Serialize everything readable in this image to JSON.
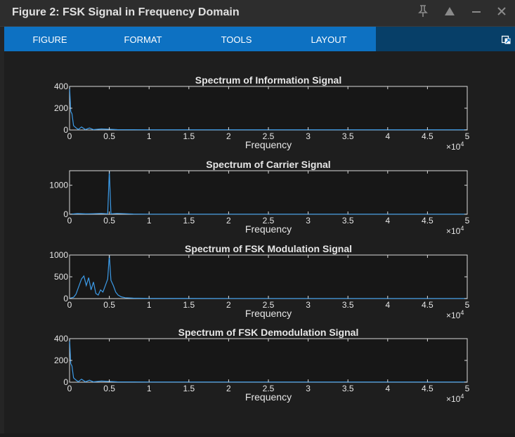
{
  "window": {
    "title": "Figure 2: FSK Signal in Frequency Domain"
  },
  "titlebar_icons": [
    "pin-icon",
    "collapse-icon",
    "minimize-icon",
    "close-icon"
  ],
  "toolstrip": {
    "tabs": [
      {
        "label": "FIGURE"
      },
      {
        "label": "FORMAT"
      },
      {
        "label": "TOOLS"
      },
      {
        "label": "LAYOUT"
      }
    ],
    "undock_icon": "undock-icon",
    "accent": "#0d71c2"
  },
  "colors": {
    "axes_bg": "#171717",
    "line": "#3c9be8",
    "text": "#e6e6e6"
  },
  "chart_data": [
    {
      "type": "line",
      "title": "Spectrum of Information Signal",
      "xlabel": "Frequency",
      "x_exponent": "×10^4",
      "xlim": [
        0,
        50000
      ],
      "ylim": [
        0,
        400
      ],
      "xticks": [
        "0",
        "0.5",
        "1",
        "1.5",
        "2",
        "2.5",
        "3",
        "3.5",
        "4",
        "4.5",
        "5"
      ],
      "yticks": [
        "0",
        "200",
        "400"
      ],
      "x": [
        0,
        150,
        300,
        500,
        800,
        1100,
        1500,
        2000,
        2500,
        3000,
        4000,
        6000,
        10000,
        20000,
        30000,
        40000,
        50000
      ],
      "y": [
        400,
        170,
        150,
        40,
        20,
        5,
        28,
        4,
        18,
        3,
        10,
        3,
        2,
        2,
        2,
        2,
        2
      ]
    },
    {
      "type": "line",
      "title": "Spectrum of Carrier Signal",
      "xlabel": "Frequency",
      "x_exponent": "×10^4",
      "xlim": [
        0,
        50000
      ],
      "ylim": [
        0,
        1500
      ],
      "xticks": [
        "0",
        "0.5",
        "1",
        "1.5",
        "2",
        "2.5",
        "3",
        "3.5",
        "4",
        "4.5",
        "5"
      ],
      "yticks": [
        "0",
        "1000"
      ],
      "x": [
        0,
        1000,
        2000,
        3000,
        4000,
        4800,
        5000,
        5200,
        6000,
        7000,
        8000,
        10000,
        20000,
        30000,
        40000,
        50000
      ],
      "y": [
        5,
        25,
        15,
        20,
        30,
        15,
        1500,
        15,
        30,
        20,
        10,
        5,
        5,
        5,
        5,
        5
      ]
    },
    {
      "type": "line",
      "title": "Spectrum of FSK Modulation Signal",
      "xlabel": "Frequency",
      "x_exponent": "×10^4",
      "xlim": [
        0,
        50000
      ],
      "ylim": [
        0,
        1000
      ],
      "xticks": [
        "0",
        "0.5",
        "1",
        "1.5",
        "2",
        "2.5",
        "3",
        "3.5",
        "4",
        "4.5",
        "5"
      ],
      "yticks": [
        "0",
        "500",
        "1000"
      ],
      "x": [
        0,
        500,
        800,
        1200,
        1500,
        1800,
        2100,
        2400,
        2700,
        3000,
        3300,
        3600,
        3900,
        4200,
        4500,
        4800,
        5000,
        5200,
        5500,
        5800,
        6100,
        6500,
        7000,
        8000,
        10000,
        20000,
        30000,
        40000,
        50000
      ],
      "y": [
        5,
        30,
        100,
        300,
        450,
        520,
        300,
        480,
        200,
        380,
        120,
        80,
        200,
        150,
        300,
        450,
        1000,
        420,
        300,
        150,
        80,
        40,
        20,
        10,
        5,
        3,
        3,
        3,
        3
      ]
    },
    {
      "type": "line",
      "title": "Spectrum of FSK Demodulation Signal",
      "xlabel": "Frequency",
      "x_exponent": "×10^4",
      "xlim": [
        0,
        50000
      ],
      "ylim": [
        0,
        400
      ],
      "xticks": [
        "0",
        "0.5",
        "1",
        "1.5",
        "2",
        "2.5",
        "3",
        "3.5",
        "4",
        "4.5",
        "5"
      ],
      "yticks": [
        "0",
        "200",
        "400"
      ],
      "x": [
        0,
        150,
        300,
        500,
        800,
        1100,
        1500,
        2000,
        2500,
        3000,
        4000,
        6000,
        10000,
        20000,
        30000,
        40000,
        50000
      ],
      "y": [
        400,
        170,
        150,
        40,
        20,
        5,
        28,
        4,
        18,
        3,
        10,
        3,
        2,
        2,
        2,
        2,
        2
      ]
    }
  ]
}
